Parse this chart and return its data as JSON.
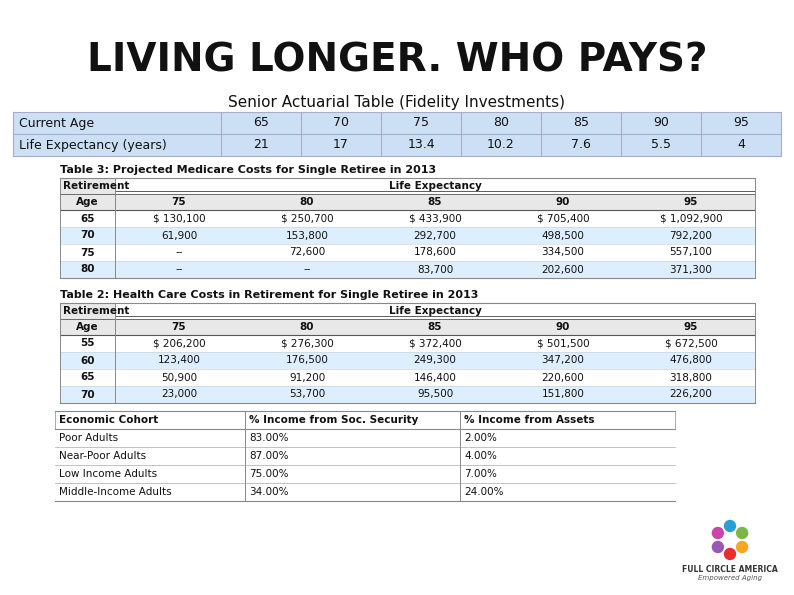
{
  "title": "LIVING LONGER. WHO PAYS?",
  "subtitle": "Senior Actuarial Table (Fidelity Investments)",
  "bg_color": "#ffffff",
  "title_color": "#111111",
  "subtitle_color": "#111111",
  "actuarial_header": [
    "Current Age",
    "65",
    "70",
    "75",
    "80",
    "85",
    "90",
    "95"
  ],
  "actuarial_row": [
    "Life Expectancy (years)",
    "21",
    "17",
    "13.4",
    "10.2",
    "7.6",
    "5.5",
    "4"
  ],
  "actuarial_bg": "#cce0f5",
  "actuarial_line_color": "#aaaacc",
  "table3_title": "Table 3: Projected Medicare Costs for Single Retiree in 2013",
  "table3_header2": [
    "Age",
    "75",
    "80",
    "85",
    "90",
    "95"
  ],
  "table3_rows": [
    [
      "65",
      "$ 130,100",
      "$ 250,700",
      "$ 433,900",
      "$ 705,400",
      "$ 1,092,900"
    ],
    [
      "70",
      "61,900",
      "153,800",
      "292,700",
      "498,500",
      "792,200"
    ],
    [
      "75",
      "--",
      "72,600",
      "178,600",
      "334,500",
      "557,100"
    ],
    [
      "80",
      "--",
      "--",
      "83,700",
      "202,600",
      "371,300"
    ]
  ],
  "table2_title": "Table 2: Health Care Costs in Retirement for Single Retiree in 2013",
  "table2_header2": [
    "Age",
    "75",
    "80",
    "85",
    "90",
    "95"
  ],
  "table2_rows": [
    [
      "55",
      "$ 206,200",
      "$ 276,300",
      "$ 372,400",
      "$ 501,500",
      "$ 672,500"
    ],
    [
      "60",
      "123,400",
      "176,500",
      "249,300",
      "347,200",
      "476,800"
    ],
    [
      "65",
      "50,900",
      "91,200",
      "146,400",
      "220,600",
      "318,800"
    ],
    [
      "70",
      "23,000",
      "53,700",
      "95,500",
      "151,800",
      "226,200"
    ]
  ],
  "income_header": [
    "Economic Cohort",
    "% Income from Soc. Security",
    "% Income from Assets"
  ],
  "income_rows": [
    [
      "Poor Adults",
      "83.00%",
      "2.00%"
    ],
    [
      "Near-Poor Adults",
      "87.00%",
      "4.00%"
    ],
    [
      "Low Income Adults",
      "75.00%",
      "7.00%"
    ],
    [
      "Middle-Income Adults",
      "34.00%",
      "24.00%"
    ]
  ],
  "table3_row_alts": [
    false,
    true,
    false,
    true
  ],
  "table2_row_alts": [
    false,
    true,
    false,
    true
  ],
  "alt_row_color": "#ddeeff",
  "logo_text1": "FULL CIRCLE AMERICA",
  "logo_text2": "Empowered Aging",
  "logo_colors": [
    "#e63030",
    "#f5a623",
    "#7ab648",
    "#2a9fd6",
    "#9b59b6",
    "#cc44aa"
  ]
}
